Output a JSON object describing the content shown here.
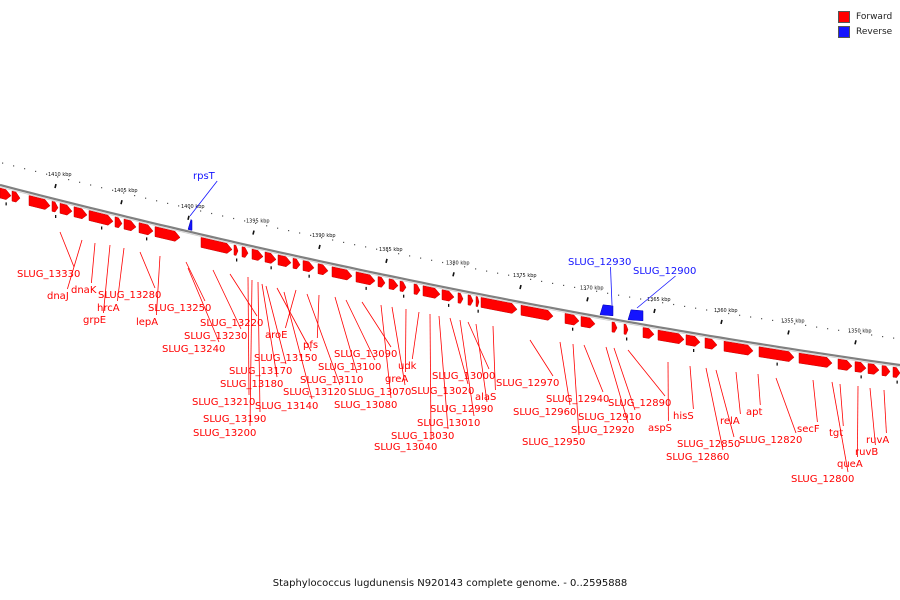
{
  "colors": {
    "forward": "#ff0000",
    "reverse": "#1414ff",
    "backbone": "#808080",
    "text": "#111111"
  },
  "legend": [
    {
      "label": "Forward",
      "color": "#ff0000"
    },
    {
      "label": "Reverse",
      "color": "#1414ff"
    }
  ],
  "caption": "Staphylococcus lugdunensis N920143 complete genome. - 0..2595888",
  "ruler": {
    "kbp_labels": [
      "1410 kbp",
      "1405 kbp",
      "1400 kbp",
      "1395 kbp",
      "1390 kbp",
      "1385 kbp",
      "1380 kbp",
      "1375 kbp",
      "1370 kbp",
      "1365 kbp",
      "1360 kbp",
      "1355 kbp",
      "1350 kbp"
    ]
  },
  "genes": [
    {
      "label": "SLUG_13330",
      "strand": "forward"
    },
    {
      "label": "dnaJ",
      "strand": "forward"
    },
    {
      "label": "dnaK",
      "strand": "forward"
    },
    {
      "label": "grpE",
      "strand": "forward"
    },
    {
      "label": "hrcA",
      "strand": "forward"
    },
    {
      "label": "SLUG_13280",
      "strand": "forward"
    },
    {
      "label": "lepA",
      "strand": "forward"
    },
    {
      "label": "SLUG_13250",
      "strand": "forward"
    },
    {
      "label": "rpsT",
      "strand": "reverse"
    },
    {
      "label": "SLUG_13240",
      "strand": "forward"
    },
    {
      "label": "SLUG_13230",
      "strand": "forward"
    },
    {
      "label": "SLUG_13220",
      "strand": "forward"
    },
    {
      "label": "SLUG_13210",
      "strand": "forward"
    },
    {
      "label": "SLUG_13200",
      "strand": "forward"
    },
    {
      "label": "SLUG_13190",
      "strand": "forward"
    },
    {
      "label": "SLUG_13180",
      "strand": "forward"
    },
    {
      "label": "SLUG_13170",
      "strand": "forward"
    },
    {
      "label": "SLUG_13150",
      "strand": "forward"
    },
    {
      "label": "aroE",
      "strand": "forward"
    },
    {
      "label": "SLUG_13140",
      "strand": "forward"
    },
    {
      "label": "SLUG_13120",
      "strand": "forward"
    },
    {
      "label": "pfs",
      "strand": "forward"
    },
    {
      "label": "SLUG_13110",
      "strand": "forward"
    },
    {
      "label": "SLUG_13100",
      "strand": "forward"
    },
    {
      "label": "SLUG_13090",
      "strand": "forward"
    },
    {
      "label": "SLUG_13080",
      "strand": "forward"
    },
    {
      "label": "SLUG_13070",
      "strand": "forward"
    },
    {
      "label": "greA",
      "strand": "forward"
    },
    {
      "label": "udk",
      "strand": "forward"
    },
    {
      "label": "SLUG_13040",
      "strand": "forward"
    },
    {
      "label": "SLUG_13030",
      "strand": "forward"
    },
    {
      "label": "SLUG_13020",
      "strand": "forward"
    },
    {
      "label": "SLUG_13010",
      "strand": "forward"
    },
    {
      "label": "SLUG_13000",
      "strand": "forward"
    },
    {
      "label": "SLUG_12990",
      "strand": "forward"
    },
    {
      "label": "alaS",
      "strand": "forward"
    },
    {
      "label": "SLUG_12970",
      "strand": "forward"
    },
    {
      "label": "SLUG_12960",
      "strand": "forward"
    },
    {
      "label": "SLUG_12950",
      "strand": "forward"
    },
    {
      "label": "SLUG_12940",
      "strand": "forward"
    },
    {
      "label": "SLUG_12930",
      "strand": "reverse"
    },
    {
      "label": "SLUG_12920",
      "strand": "forward"
    },
    {
      "label": "SLUG_12910",
      "strand": "forward"
    },
    {
      "label": "SLUG_12900",
      "strand": "reverse"
    },
    {
      "label": "SLUG_12890",
      "strand": "forward"
    },
    {
      "label": "aspS",
      "strand": "forward"
    },
    {
      "label": "hisS",
      "strand": "forward"
    },
    {
      "label": "SLUG_12860",
      "strand": "forward"
    },
    {
      "label": "SLUG_12850",
      "strand": "forward"
    },
    {
      "label": "relA",
      "strand": "forward"
    },
    {
      "label": "apt",
      "strand": "forward"
    },
    {
      "label": "SLUG_12820",
      "strand": "forward"
    },
    {
      "label": "secF",
      "strand": "forward"
    },
    {
      "label": "SLUG_12800",
      "strand": "forward"
    },
    {
      "label": "tgt",
      "strand": "forward"
    },
    {
      "label": "queA",
      "strand": "forward"
    },
    {
      "label": "ruvB",
      "strand": "forward"
    },
    {
      "label": "ruvA",
      "strand": "forward"
    }
  ]
}
